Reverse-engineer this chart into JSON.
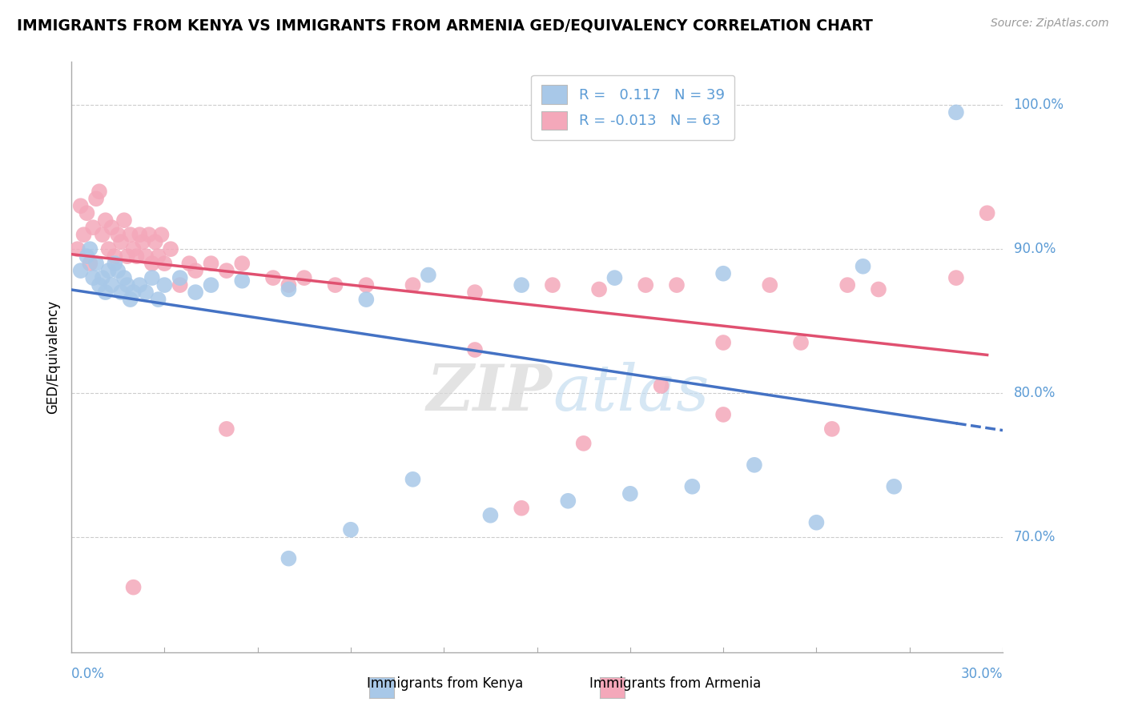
{
  "title": "IMMIGRANTS FROM KENYA VS IMMIGRANTS FROM ARMENIA GED/EQUIVALENCY CORRELATION CHART",
  "source": "Source: ZipAtlas.com",
  "ylabel": "GED/Equivalency",
  "xmin": 0.0,
  "xmax": 30.0,
  "ymin": 62.0,
  "ymax": 103.0,
  "yticks": [
    70.0,
    80.0,
    90.0,
    100.0
  ],
  "kenya_R": 0.117,
  "kenya_N": 39,
  "armenia_R": -0.013,
  "armenia_N": 63,
  "kenya_color": "#a8c8e8",
  "armenia_color": "#f4a8ba",
  "kenya_line_color": "#4472c4",
  "armenia_line_color": "#e05070",
  "grid_color": "#cccccc",
  "text_color": "#5b9bd5",
  "watermark_zip": "ZIP",
  "watermark_atlas": "atlas",
  "kenya_x": [
    0.3,
    0.5,
    0.6,
    0.7,
    0.8,
    0.9,
    1.0,
    1.1,
    1.2,
    1.3,
    1.4,
    1.5,
    1.6,
    1.7,
    1.8,
    1.9,
    2.0,
    2.2,
    2.4,
    2.6,
    2.8,
    3.0,
    3.5,
    4.0,
    4.5,
    5.5,
    7.0,
    9.5,
    11.5,
    14.5,
    17.5,
    21.0,
    25.5,
    28.5
  ],
  "kenya_y": [
    88.5,
    89.5,
    90.0,
    88.0,
    89.0,
    87.5,
    88.0,
    87.0,
    88.5,
    87.5,
    89.0,
    88.5,
    87.0,
    88.0,
    87.5,
    86.5,
    87.0,
    87.5,
    87.0,
    88.0,
    86.5,
    87.5,
    88.0,
    87.0,
    87.5,
    87.8,
    87.2,
    86.5,
    88.2,
    87.5,
    88.0,
    88.3,
    88.8,
    99.5
  ],
  "armenia_x": [
    0.2,
    0.3,
    0.4,
    0.5,
    0.6,
    0.7,
    0.8,
    0.9,
    1.0,
    1.1,
    1.2,
    1.3,
    1.4,
    1.5,
    1.6,
    1.7,
    1.8,
    1.9,
    2.0,
    2.1,
    2.2,
    2.3,
    2.4,
    2.5,
    2.6,
    2.7,
    2.8,
    2.9,
    3.0,
    3.2,
    3.5,
    3.8,
    4.0,
    4.5,
    5.0,
    5.5,
    6.5,
    7.0,
    7.5,
    8.5,
    9.5,
    11.0,
    13.0,
    15.5,
    17.0,
    18.5,
    19.5,
    21.0,
    22.5,
    25.0,
    26.0,
    28.5,
    29.5
  ],
  "armenia_y": [
    90.0,
    93.0,
    91.0,
    92.5,
    89.0,
    91.5,
    93.5,
    94.0,
    91.0,
    92.0,
    90.0,
    91.5,
    89.5,
    91.0,
    90.5,
    92.0,
    89.5,
    91.0,
    90.0,
    89.5,
    91.0,
    90.5,
    89.5,
    91.0,
    89.0,
    90.5,
    89.5,
    91.0,
    89.0,
    90.0,
    87.5,
    89.0,
    88.5,
    89.0,
    88.5,
    89.0,
    88.0,
    87.5,
    88.0,
    87.5,
    87.5,
    87.5,
    87.0,
    87.5,
    87.2,
    87.5,
    87.5,
    78.5,
    87.5,
    87.5,
    87.2,
    88.0,
    92.5
  ],
  "extra_armenia_low": [
    [
      2.0,
      66.5
    ],
    [
      5.0,
      77.5
    ],
    [
      13.0,
      83.0
    ],
    [
      14.5,
      72.0
    ],
    [
      16.5,
      76.5
    ],
    [
      19.0,
      80.5
    ],
    [
      21.0,
      83.5
    ],
    [
      23.5,
      83.5
    ],
    [
      24.5,
      77.5
    ]
  ],
  "extra_kenya_low": [
    [
      7.0,
      68.5
    ],
    [
      9.0,
      70.5
    ],
    [
      11.0,
      74.0
    ],
    [
      13.5,
      71.5
    ],
    [
      16.0,
      72.5
    ],
    [
      18.0,
      73.0
    ],
    [
      20.0,
      73.5
    ],
    [
      22.0,
      75.0
    ],
    [
      24.0,
      71.0
    ],
    [
      26.5,
      73.5
    ]
  ]
}
